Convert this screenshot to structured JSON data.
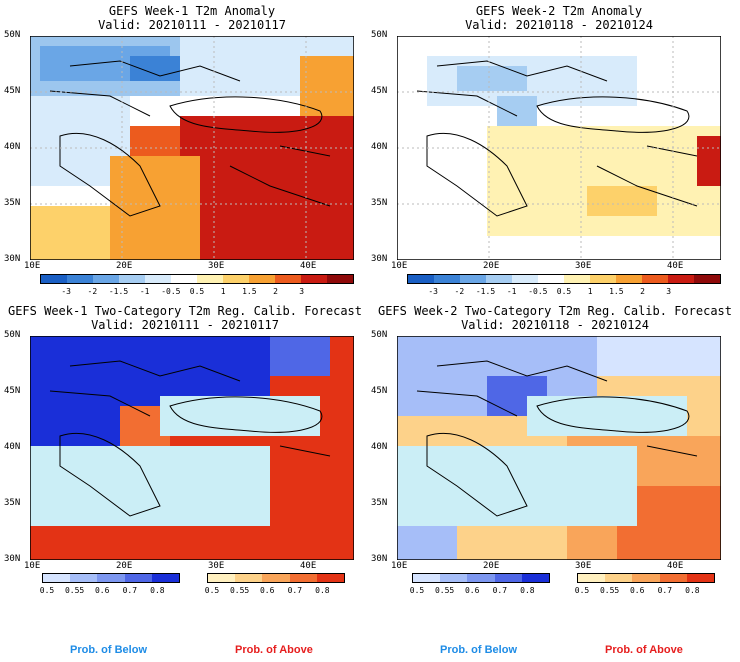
{
  "panels": [
    {
      "title": "GEFS Week-1 T2m Anomaly",
      "valid": "Valid: 20210111 - 20210117"
    },
    {
      "title": "GEFS Week-2 T2m Anomaly",
      "valid": "Valid: 20210118 - 20210124"
    },
    {
      "title": "GEFS Week-1 Two-Category T2m Reg. Calib. Forecast",
      "valid": "Valid: 20210111 - 20210117"
    },
    {
      "title": "GEFS Week-2 Two-Category T2m Reg. Calib. Forecast",
      "valid": "Valid: 20210118 - 20210124"
    }
  ],
  "lat_ticks": [
    "50N",
    "45N",
    "40N",
    "35N",
    "30N"
  ],
  "lon_ticks": [
    "10E",
    "20E",
    "30E",
    "40E"
  ],
  "anom_bar": {
    "labels": [
      "-3",
      "-2",
      "-1.5",
      "-1",
      "-0.5",
      "0.5",
      "1",
      "1.5",
      "2",
      "3"
    ],
    "colors": [
      "#1a5fc4",
      "#3b82d6",
      "#6aa6e6",
      "#a6cdf2",
      "#d8ebfb",
      "#ffffff",
      "#fff2b3",
      "#fdd16a",
      "#f7a133",
      "#ec5b1e",
      "#c91b12",
      "#8f0a0a"
    ]
  },
  "prob_below": {
    "labels": [
      "0.5",
      "0.55",
      "0.6",
      "0.7",
      "0.8"
    ],
    "colors": [
      "#d6e4ff",
      "#a6bef8",
      "#7d97f0",
      "#4f67e6",
      "#1a2fd8"
    ]
  },
  "prob_above": {
    "labels": [
      "0.5",
      "0.55",
      "0.6",
      "0.7",
      "0.8"
    ],
    "colors": [
      "#fff0c0",
      "#fdd28a",
      "#f9a55a",
      "#f26e32",
      "#e33315"
    ]
  },
  "legend": {
    "below": "Prob. of Below",
    "above": "Prob. of Above",
    "below_color": "#1e8ce6",
    "above_color": "#e61e1e"
  }
}
